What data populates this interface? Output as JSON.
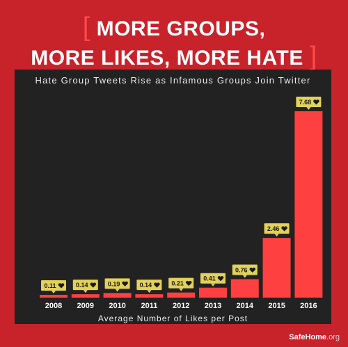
{
  "header": {
    "line1": "MORE GROUPS,",
    "line2": "MORE LIKES, MORE HATE",
    "bracket_open": "[",
    "bracket_close": "]"
  },
  "colors": {
    "background": "#c8222b",
    "panel": "#222222",
    "bar": "#ff4040",
    "label_bg": "#e2d15a",
    "accent": "#ff4a4a"
  },
  "icons": {
    "label_icon": "heart-icon"
  },
  "chart_data": {
    "type": "bar",
    "title": "Hate Group Tweets Rise as Infamous Groups Join Twitter",
    "xlabel": "Average Number of Likes per Post",
    "ylabel": "",
    "categories": [
      "2008",
      "2009",
      "2010",
      "2011",
      "2012",
      "2013",
      "2014",
      "2015",
      "2016"
    ],
    "values": [
      0.11,
      0.14,
      0.19,
      0.14,
      0.21,
      0.41,
      0.76,
      2.46,
      7.68
    ],
    "value_labels": [
      "0.11",
      "0.14",
      "0.19",
      "0.14",
      "0.21",
      "0.41",
      "0.76",
      "2.46",
      "7.68"
    ],
    "ylim": [
      0,
      7.68
    ],
    "grid": false,
    "legend": "none"
  },
  "footer": {
    "brand": "SafeHome",
    "brand_tld": ".org"
  }
}
